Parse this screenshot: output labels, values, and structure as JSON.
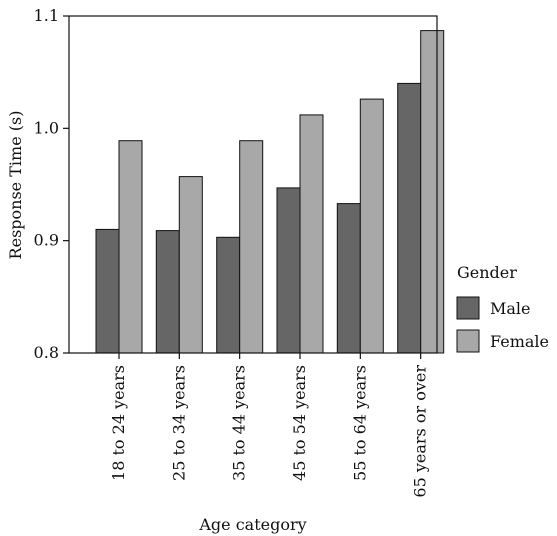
{
  "chart_data": {
    "type": "bar",
    "title": "",
    "xlabel": "Age category",
    "ylabel": "Response Time (s)",
    "ylim": [
      0.8,
      1.1
    ],
    "yticks": [
      "0.8",
      "0.9",
      "1.0",
      "1.1"
    ],
    "categories": [
      "18 to 24 years",
      "25 to 34 years",
      "35 to 44 years",
      "45 to 54 years",
      "55 to 64 years",
      "65 years or over"
    ],
    "series": [
      {
        "name": "Male",
        "color": "#666666",
        "values": [
          0.91,
          0.909,
          0.903,
          0.947,
          0.933,
          1.04
        ]
      },
      {
        "name": "Female",
        "color": "#a8a8a8",
        "values": [
          0.989,
          0.957,
          0.989,
          1.012,
          1.026,
          1.087
        ]
      }
    ],
    "legend": {
      "title": "Gender",
      "position": "right"
    },
    "grid": false
  }
}
